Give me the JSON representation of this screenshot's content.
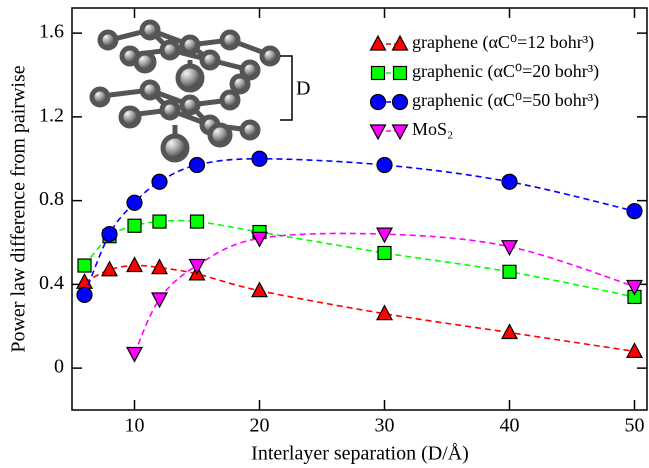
{
  "chart_data": {
    "type": "line",
    "x_label": "Interlayer separation (D/Å)",
    "y_label": "Power law difference from pairwise",
    "inset_label": "D",
    "xlim": [
      5,
      51
    ],
    "ylim": [
      -0.2,
      1.72
    ],
    "xticks": [
      10,
      20,
      30,
      40,
      50
    ],
    "yticks": [
      0,
      0.4,
      0.8,
      1.2,
      1.6
    ],
    "legend_position": "upper right",
    "series": [
      {
        "name": "graphene (αC⁰=12 bohr³)",
        "color": "#ff0000",
        "marker": "triangle-up",
        "x": [
          6,
          8,
          10,
          12,
          15,
          20,
          30,
          40,
          50
        ],
        "values": [
          0.41,
          0.47,
          0.49,
          0.48,
          0.45,
          0.37,
          0.26,
          0.17,
          0.08
        ]
      },
      {
        "name": "graphenic (αC⁰=20 bohr³)",
        "color": "#00ff00",
        "marker": "square",
        "x": [
          6,
          8,
          10,
          12,
          15,
          20,
          30,
          40,
          50
        ],
        "values": [
          0.49,
          0.63,
          0.68,
          0.7,
          0.7,
          0.65,
          0.55,
          0.46,
          0.34
        ]
      },
      {
        "name": "graphenic (αC⁰=50 bohr³)",
        "color": "#0000ff",
        "marker": "circle",
        "x": [
          6,
          8,
          10,
          12,
          15,
          20,
          30,
          40,
          50
        ],
        "values": [
          0.35,
          0.64,
          0.79,
          0.89,
          0.97,
          1.0,
          0.97,
          0.89,
          0.75
        ]
      },
      {
        "name": "MoS₂",
        "color": "#ff00ff",
        "marker": "triangle-down",
        "x": [
          10,
          12,
          15,
          20,
          30,
          40,
          50
        ],
        "values": [
          0.07,
          0.33,
          0.49,
          0.62,
          0.64,
          0.58,
          0.39
        ]
      }
    ]
  }
}
